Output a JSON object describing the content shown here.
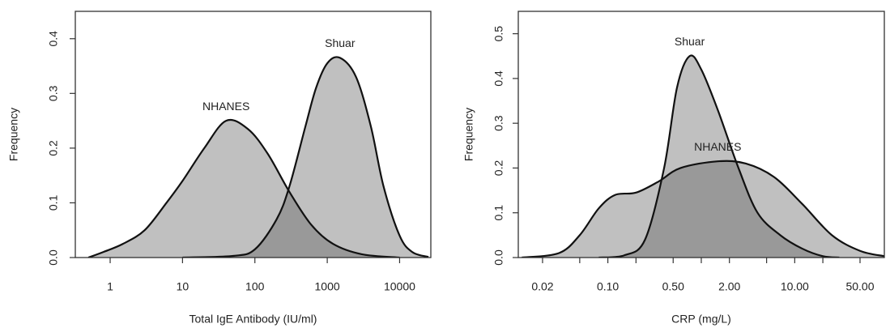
{
  "chart_data": [
    {
      "type": "area",
      "xscale": "log",
      "xlabel": "Total IgE Antibody (IU/ml)",
      "ylabel": "Frequency",
      "xlim": [
        0.33,
        27000
      ],
      "ylim": [
        0,
        0.45
      ],
      "xticks": [
        1,
        10,
        100,
        1000,
        10000
      ],
      "yticks": [
        {
          "value": 0,
          "label": "0.0"
        },
        0.1,
        0.2,
        0.3,
        0.4
      ],
      "series": [
        {
          "name": "NHANES",
          "color": "#595959",
          "x": [
            0.5,
            0.8,
            1.5,
            3,
            6,
            10,
            20,
            40,
            80,
            150,
            300,
            600,
            1200,
            3000,
            10000
          ],
          "values": [
            0,
            0.01,
            0.025,
            0.05,
            0.1,
            0.14,
            0.2,
            0.25,
            0.235,
            0.19,
            0.12,
            0.06,
            0.025,
            0.006,
            0
          ]
        },
        {
          "name": "Shuar",
          "color": "#595959",
          "x": [
            10,
            50,
            100,
            200,
            300,
            500,
            700,
            1000,
            1500,
            2500,
            4000,
            6000,
            10000,
            15000,
            25000
          ],
          "values": [
            0,
            0.003,
            0.015,
            0.07,
            0.13,
            0.24,
            0.31,
            0.355,
            0.365,
            0.33,
            0.24,
            0.13,
            0.04,
            0.01,
            0.001
          ]
        }
      ]
    },
    {
      "type": "area",
      "xscale": "log",
      "xlabel": "CRP (mg/L)",
      "ylabel": "Frequency",
      "xlim": [
        0.011,
        91
      ],
      "ylim": [
        0,
        0.55
      ],
      "xticks": [
        0.02,
        {
          "value": 0.1,
          "label": "0.10"
        },
        {
          "value": 0.5,
          "label": "0.50"
        },
        {
          "value": 2,
          "label": "2.00"
        },
        {
          "value": 10,
          "label": "10.00"
        },
        {
          "value": 50,
          "label": "50.00"
        }
      ],
      "xminor_ticks": [
        0.05,
        0.2,
        1,
        5,
        20
      ],
      "yticks": [
        {
          "value": 0,
          "label": "0.0"
        },
        0.1,
        0.2,
        0.3,
        0.4,
        0.5
      ],
      "series": [
        {
          "name": "NHANES",
          "color": "#595959",
          "x": [
            0.012,
            0.03,
            0.05,
            0.08,
            0.12,
            0.2,
            0.35,
            0.6,
            1.5,
            3,
            6,
            12,
            25,
            50,
            91
          ],
          "values": [
            0,
            0.01,
            0.05,
            0.11,
            0.14,
            0.145,
            0.17,
            0.2,
            0.215,
            0.21,
            0.18,
            0.12,
            0.05,
            0.015,
            0.003
          ]
        },
        {
          "name": "Shuar",
          "color": "#595959",
          "x": [
            0.08,
            0.15,
            0.25,
            0.4,
            0.55,
            0.75,
            1,
            1.5,
            2.5,
            4,
            7,
            12,
            20,
            30
          ],
          "values": [
            0,
            0.005,
            0.04,
            0.2,
            0.38,
            0.45,
            0.42,
            0.33,
            0.2,
            0.1,
            0.05,
            0.02,
            0.003,
            0
          ]
        }
      ]
    }
  ]
}
